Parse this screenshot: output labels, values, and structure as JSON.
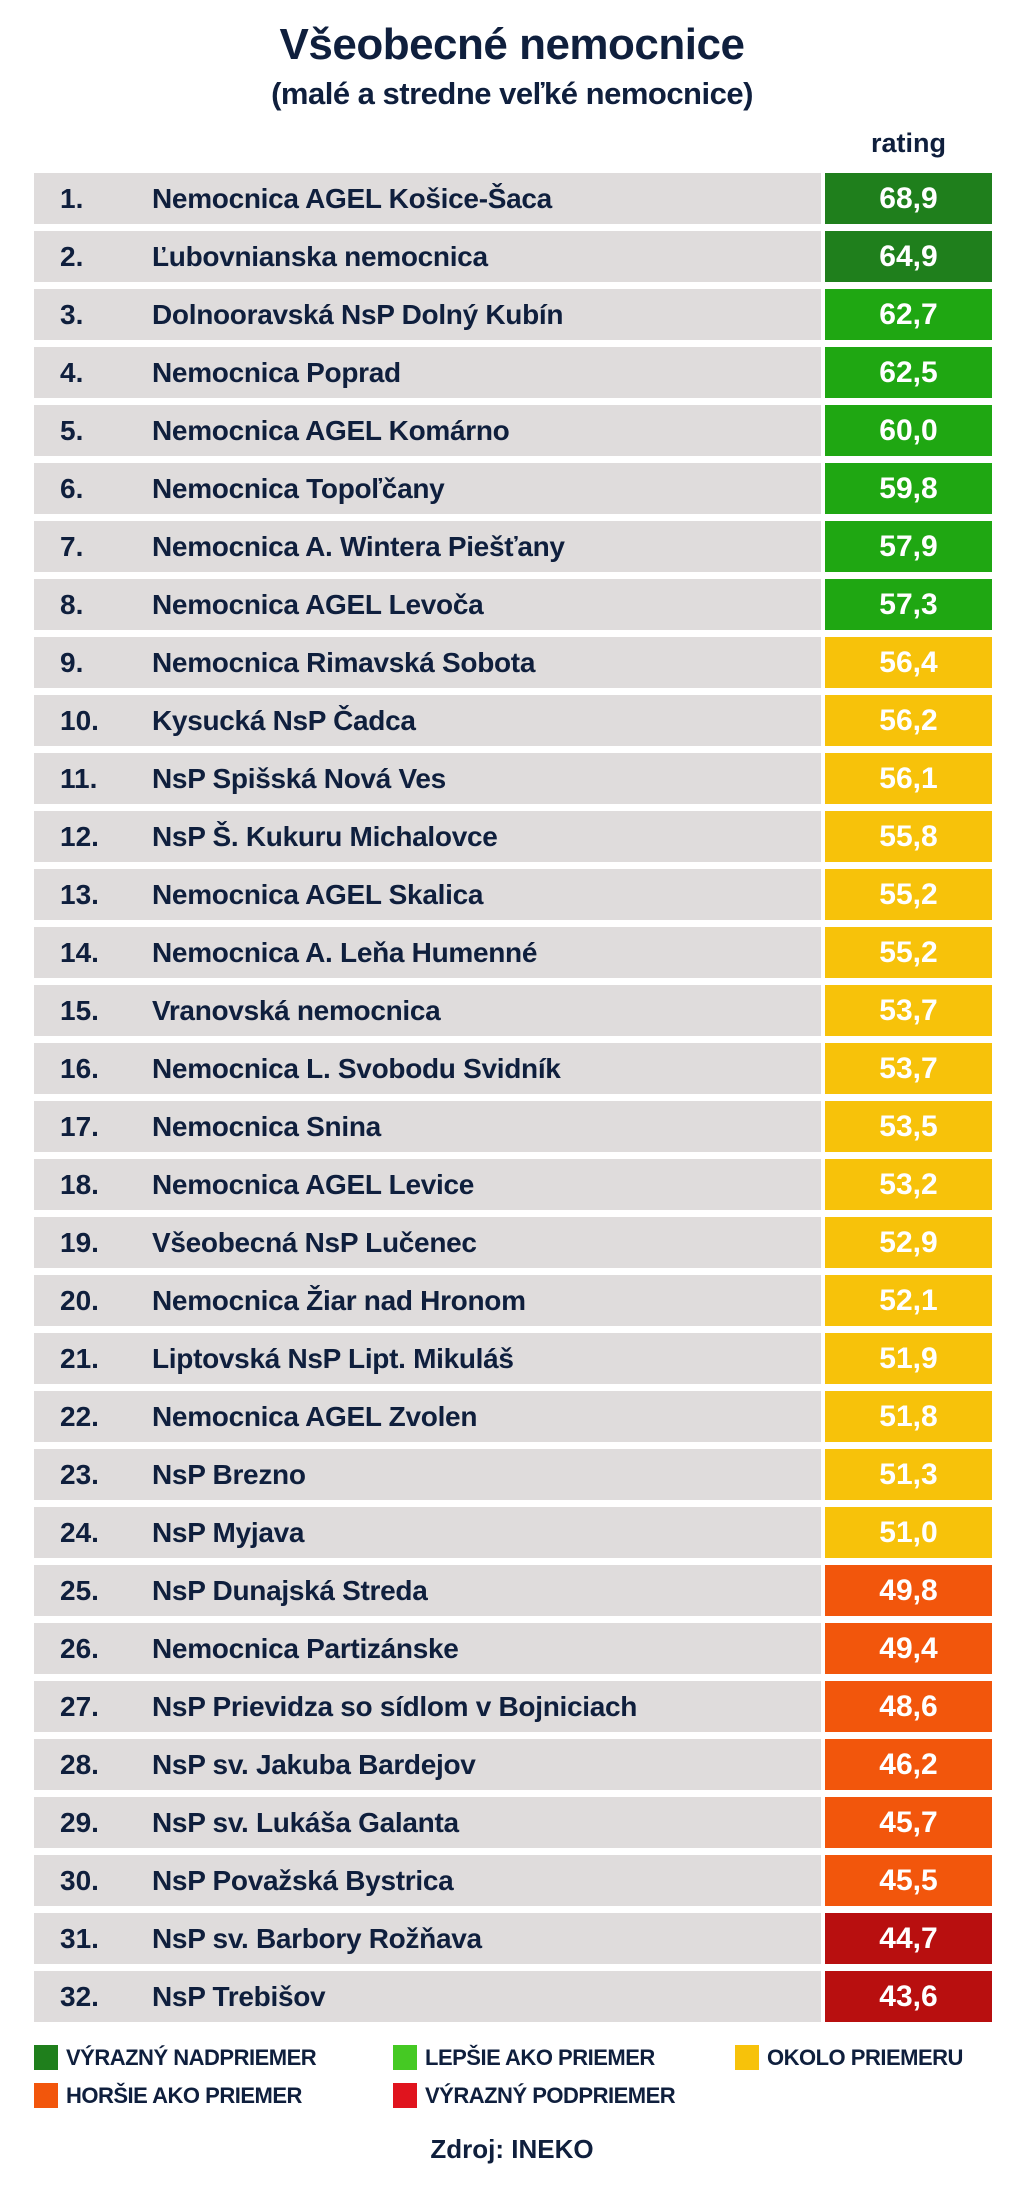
{
  "chart_data": {
    "type": "table",
    "title": "Všeobecné nemocnice",
    "subtitle": "(malé a stredne veľké nemocnice)",
    "column_header": "rating",
    "categories": {
      "very_above": {
        "label": "VÝRAZNÝ NADPRIEMER",
        "color": "#1f7f1c"
      },
      "above": {
        "label": "LEPŠIE AKO PRIEMER",
        "color": "#1fa712"
      },
      "average": {
        "label": "OKOLO PRIEMERU",
        "color": "#f7c20a"
      },
      "below": {
        "label": "HORŠIE AKO PRIEMER",
        "color": "#f2560c"
      },
      "very_below": {
        "label": "VÝRAZNÝ PODPRIEMER",
        "color": "#b80f0f"
      }
    },
    "legend_colors": {
      "very_above": "#1f7f1c",
      "above": "#45c923",
      "average": "#f7c20a",
      "below": "#f2560c",
      "very_below": "#e0141e"
    },
    "rows": [
      {
        "rank": "1.",
        "name": "Nemocnica AGEL Košice-Šaca",
        "rating": "68,9",
        "value": 68.9,
        "cat": "very_above"
      },
      {
        "rank": "2.",
        "name": "Ľubovnianska nemocnica",
        "rating": "64,9",
        "value": 64.9,
        "cat": "very_above"
      },
      {
        "rank": "3.",
        "name": "Dolnooravská NsP Dolný Kubín",
        "rating": "62,7",
        "value": 62.7,
        "cat": "above"
      },
      {
        "rank": "4.",
        "name": "Nemocnica Poprad",
        "rating": "62,5",
        "value": 62.5,
        "cat": "above"
      },
      {
        "rank": "5.",
        "name": "Nemocnica AGEL Komárno",
        "rating": "60,0",
        "value": 60.0,
        "cat": "above"
      },
      {
        "rank": "6.",
        "name": "Nemocnica Topoľčany",
        "rating": "59,8",
        "value": 59.8,
        "cat": "above"
      },
      {
        "rank": "7.",
        "name": "Nemocnica A. Wintera Piešťany",
        "rating": "57,9",
        "value": 57.9,
        "cat": "above"
      },
      {
        "rank": "8.",
        "name": "Nemocnica AGEL Levoča",
        "rating": "57,3",
        "value": 57.3,
        "cat": "above"
      },
      {
        "rank": "9.",
        "name": "Nemocnica Rimavská Sobota",
        "rating": "56,4",
        "value": 56.4,
        "cat": "average"
      },
      {
        "rank": "10.",
        "name": "Kysucká NsP Čadca",
        "rating": "56,2",
        "value": 56.2,
        "cat": "average"
      },
      {
        "rank": "11.",
        "name": "NsP Spišská Nová Ves",
        "rating": "56,1",
        "value": 56.1,
        "cat": "average"
      },
      {
        "rank": "12.",
        "name": "NsP Š. Kukuru Michalovce",
        "rating": "55,8",
        "value": 55.8,
        "cat": "average"
      },
      {
        "rank": "13.",
        "name": "Nemocnica AGEL Skalica",
        "rating": "55,2",
        "value": 55.2,
        "cat": "average"
      },
      {
        "rank": "14.",
        "name": "Nemocnica A. Leňa Humenné",
        "rating": "55,2",
        "value": 55.2,
        "cat": "average"
      },
      {
        "rank": "15.",
        "name": "Vranovská nemocnica",
        "rating": "53,7",
        "value": 53.7,
        "cat": "average"
      },
      {
        "rank": "16.",
        "name": "Nemocnica L. Svobodu Svidník",
        "rating": "53,7",
        "value": 53.7,
        "cat": "average"
      },
      {
        "rank": "17.",
        "name": "Nemocnica Snina",
        "rating": "53,5",
        "value": 53.5,
        "cat": "average"
      },
      {
        "rank": "18.",
        "name": "Nemocnica AGEL Levice",
        "rating": "53,2",
        "value": 53.2,
        "cat": "average"
      },
      {
        "rank": "19.",
        "name": "Všeobecná NsP Lučenec",
        "rating": "52,9",
        "value": 52.9,
        "cat": "average"
      },
      {
        "rank": "20.",
        "name": "Nemocnica Žiar nad Hronom",
        "rating": "52,1",
        "value": 52.1,
        "cat": "average"
      },
      {
        "rank": "21.",
        "name": "Liptovská NsP Lipt. Mikuláš",
        "rating": "51,9",
        "value": 51.9,
        "cat": "average"
      },
      {
        "rank": "22.",
        "name": "Nemocnica AGEL Zvolen",
        "rating": "51,8",
        "value": 51.8,
        "cat": "average"
      },
      {
        "rank": "23.",
        "name": "NsP Brezno",
        "rating": "51,3",
        "value": 51.3,
        "cat": "average"
      },
      {
        "rank": "24.",
        "name": "NsP Myjava",
        "rating": "51,0",
        "value": 51.0,
        "cat": "average"
      },
      {
        "rank": "25.",
        "name": "NsP Dunajská Streda",
        "rating": "49,8",
        "value": 49.8,
        "cat": "below"
      },
      {
        "rank": "26.",
        "name": "Nemocnica Partizánske",
        "rating": "49,4",
        "value": 49.4,
        "cat": "below"
      },
      {
        "rank": "27.",
        "name": "NsP Prievidza so sídlom v Bojniciach",
        "rating": "48,6",
        "value": 48.6,
        "cat": "below"
      },
      {
        "rank": "28.",
        "name": "NsP sv. Jakuba Bardejov",
        "rating": "46,2",
        "value": 46.2,
        "cat": "below"
      },
      {
        "rank": "29.",
        "name": "NsP sv. Lukáša Galanta",
        "rating": "45,7",
        "value": 45.7,
        "cat": "below"
      },
      {
        "rank": "30.",
        "name": "NsP Považská Bystrica",
        "rating": "45,5",
        "value": 45.5,
        "cat": "below"
      },
      {
        "rank": "31.",
        "name": "NsP sv. Barbory Rožňava",
        "rating": "44,7",
        "value": 44.7,
        "cat": "very_below"
      },
      {
        "rank": "32.",
        "name": "NsP Trebišov",
        "rating": "43,6",
        "value": 43.6,
        "cat": "very_below"
      }
    ],
    "legend_order": [
      "very_above",
      "above",
      "average",
      "below",
      "very_below"
    ],
    "source": "Zdroj: INEKO"
  }
}
